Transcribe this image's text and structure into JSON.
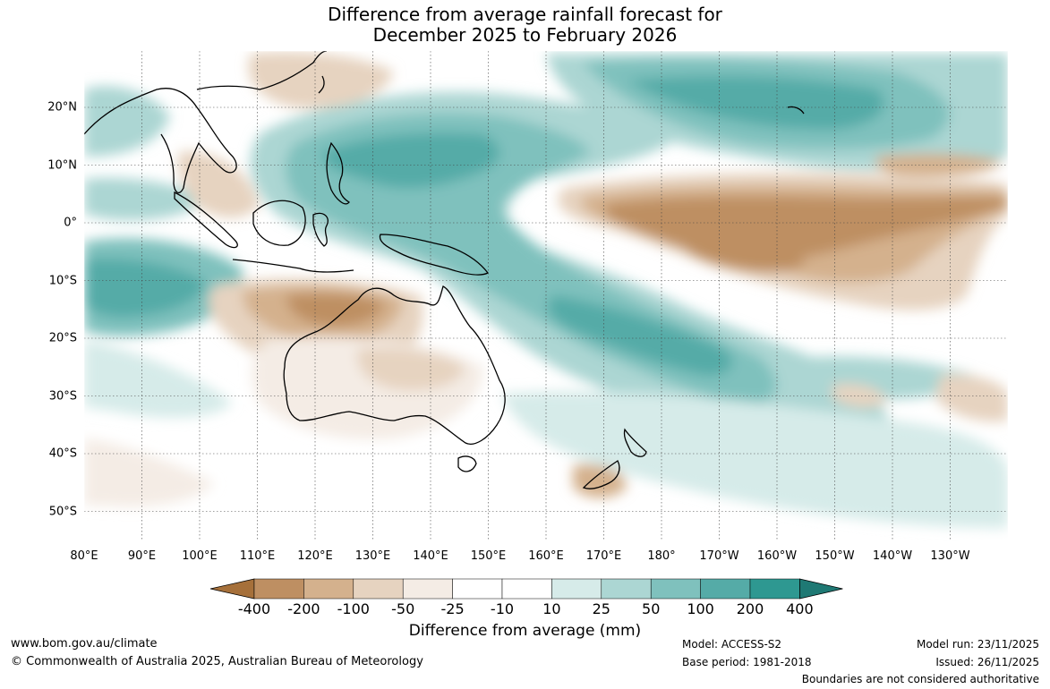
{
  "title": {
    "line1": "Difference from average rainfall forecast for",
    "line2": "December 2025 to February 2026"
  },
  "map": {
    "lon_labels": [
      "80°E",
      "90°E",
      "100°E",
      "110°E",
      "120°E",
      "130°E",
      "140°E",
      "150°E",
      "160°E",
      "170°E",
      "180°",
      "170°W",
      "160°W",
      "150°W",
      "140°W",
      "130°W"
    ],
    "lat_labels": [
      "20°N",
      "10°N",
      "0°",
      "10°S",
      "20°S",
      "30°S",
      "40°S",
      "50°S"
    ],
    "land_mask": "Australia, Indonesia, New Zealand, Southeast Asia coastlines",
    "wet_color": "#2e9891",
    "dry_color": "#a6703a"
  },
  "colorbar": {
    "ticks": [
      "-400",
      "-200",
      "-100",
      "-50",
      "-25",
      "-10",
      "10",
      "25",
      "50",
      "100",
      "200",
      "400"
    ],
    "colors": [
      "#a6703a",
      "#be8f62",
      "#d4b18d",
      "#e6d3c0",
      "#f4ece5",
      "#ffffff",
      "#d6ebe9",
      "#acd6d3",
      "#7fc1bd",
      "#55aba7",
      "#2e9891",
      "#1f7974"
    ],
    "label": "Difference from average (mm)"
  },
  "footer": {
    "website": "www.bom.gov.au/climate",
    "copyright": "© Commonwealth of Australia 2025, Australian Bureau of Meteorology",
    "model": "Model: ACCESS-S2",
    "base_period": "Base period: 1981-2018",
    "model_run": "Model run: 23/11/2025",
    "issued": "Issued: 26/11/2025",
    "disclaimer": "Boundaries are not considered authoritative"
  }
}
